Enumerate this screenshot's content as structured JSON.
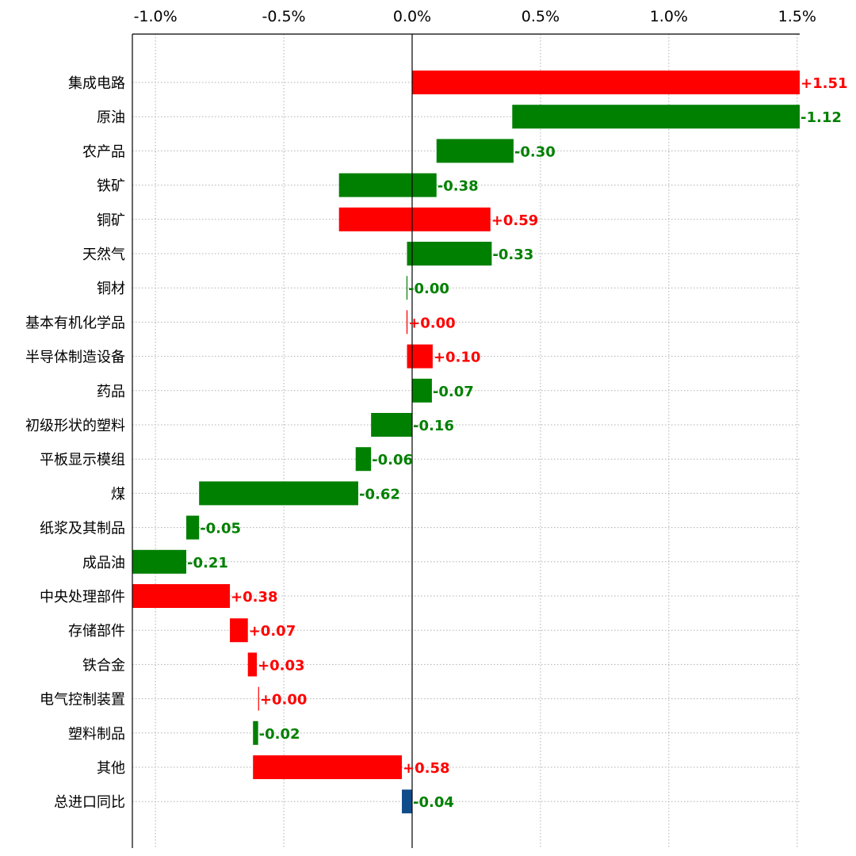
{
  "chart_data": {
    "type": "bar",
    "subtype": "waterfall-horizontal",
    "orientation": "horizontal",
    "xlim": [
      -1.09,
      1.51
    ],
    "x_ticks": [
      -1.0,
      -0.5,
      0.0,
      0.5,
      1.0,
      1.5
    ],
    "x_tick_labels": [
      "-1.0%",
      "-0.5%",
      "0.0%",
      "0.5%",
      "1.0%",
      "1.5%"
    ],
    "x_axis_position": "top",
    "grid": true,
    "colors": {
      "positive": "#ff0000",
      "negative": "#008000",
      "total": "#0f4c8a"
    },
    "categories": [
      "集成电路",
      "原油",
      "农产品",
      "铁矿",
      "铜矿",
      "天然气",
      "铜材",
      "基本有机化学品",
      "半导体制造设备",
      "药品",
      "初级形状的塑料",
      "平板显示模组",
      "煤",
      "纸浆及其制品",
      "成品油",
      "中央处理部件",
      "存储部件",
      "铁合金",
      "电气控制装置",
      "塑料制品",
      "其他",
      "总进口同比"
    ],
    "values": [
      1.51,
      -1.12,
      -0.3,
      -0.38,
      0.59,
      -0.33,
      -0.0,
      0.0,
      0.1,
      -0.07,
      -0.16,
      -0.06,
      -0.62,
      -0.05,
      -0.21,
      0.38,
      0.07,
      0.03,
      0.0,
      -0.02,
      0.58,
      -0.04
    ],
    "value_labels": [
      "+1.51",
      "-1.12",
      "-0.30",
      "-0.38",
      "+0.59",
      "-0.33",
      "-0.00",
      "+0.00",
      "+0.10",
      "-0.07",
      "-0.16",
      "-0.06",
      "-0.62",
      "-0.05",
      "-0.21",
      "+0.38",
      "+0.07",
      "+0.03",
      "+0.00",
      "-0.02",
      "+0.58",
      "-0.04"
    ],
    "bar_ranges": [
      [
        0.0,
        1.51
      ],
      [
        0.39,
        1.51
      ],
      [
        0.095,
        0.395
      ],
      [
        -0.285,
        0.095
      ],
      [
        -0.285,
        0.305
      ],
      [
        -0.02,
        0.31
      ],
      [
        -0.022,
        -0.02
      ],
      [
        -0.022,
        -0.018
      ],
      [
        -0.02,
        0.08
      ],
      [
        0.0,
        0.077
      ],
      [
        -0.16,
        0.0
      ],
      [
        -0.22,
        -0.16
      ],
      [
        -0.83,
        -0.21
      ],
      [
        -0.88,
        -0.83
      ],
      [
        -1.09,
        -0.88
      ],
      [
        -1.09,
        -0.71
      ],
      [
        -0.71,
        -0.64
      ],
      [
        -0.64,
        -0.605
      ],
      [
        -0.6,
        -0.597
      ],
      [
        -0.62,
        -0.6
      ],
      [
        -0.62,
        -0.04
      ],
      [
        -0.04,
        0.0
      ]
    ],
    "is_total": [
      false,
      false,
      false,
      false,
      false,
      false,
      false,
      false,
      false,
      false,
      false,
      false,
      false,
      false,
      false,
      false,
      false,
      false,
      false,
      false,
      false,
      true
    ],
    "title": "",
    "xlabel": "",
    "ylabel": ""
  }
}
